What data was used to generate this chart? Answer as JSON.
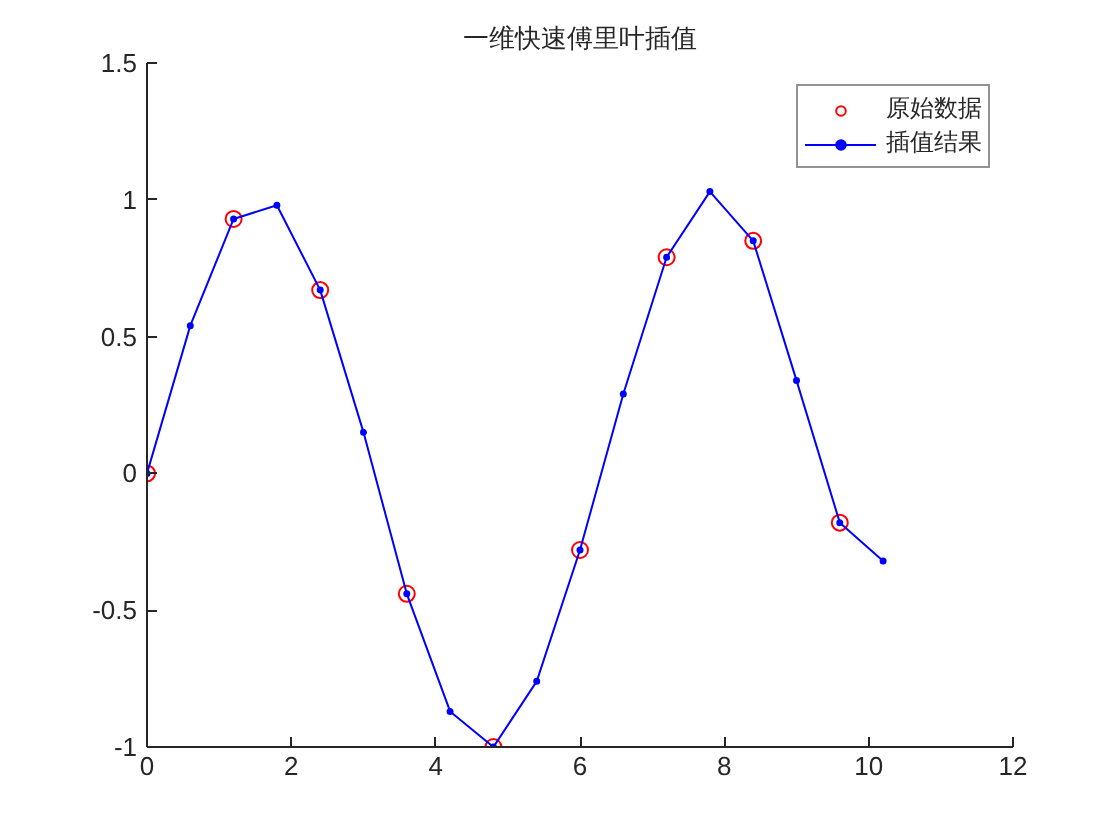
{
  "chart_data": {
    "type": "line",
    "title": "一维快速傅里叶插值",
    "xlim": [
      0,
      12
    ],
    "xticks": [
      0,
      2,
      4,
      6,
      8,
      10,
      12
    ],
    "ylim": [
      -1,
      1.5
    ],
    "yticks": [
      -1,
      -0.5,
      0,
      0.5,
      1,
      1.5
    ],
    "grid": false,
    "legend": "top right",
    "series": [
      {
        "name": "原始数据",
        "type": "scatter",
        "marker": "circle",
        "color": "#ff0000",
        "x": [
          0,
          1.2,
          2.4,
          3.6,
          4.8,
          6,
          7.2,
          8.4,
          9.6
        ],
        "values": [
          0,
          0.93,
          0.67,
          -0.44,
          -1.0,
          -0.28,
          0.79,
          0.85,
          -0.18
        ]
      },
      {
        "name": "插值结果",
        "marker": "circle",
        "line_style": "solid",
        "color": "#0000ff",
        "x": [
          0,
          0.6,
          1.2,
          1.8,
          2.4,
          3.0,
          3.6,
          4.2,
          4.8,
          5.4,
          6,
          6.6,
          7.2,
          7.8,
          8.4,
          9.0,
          9.6,
          10.2
        ],
        "values": [
          0,
          0.54,
          0.93,
          0.98,
          0.67,
          0.15,
          -0.44,
          -0.87,
          -1.0,
          -0.76,
          -0.28,
          0.29,
          0.79,
          1.03,
          0.85,
          0.34,
          -0.18,
          -0.32
        ]
      }
    ]
  }
}
